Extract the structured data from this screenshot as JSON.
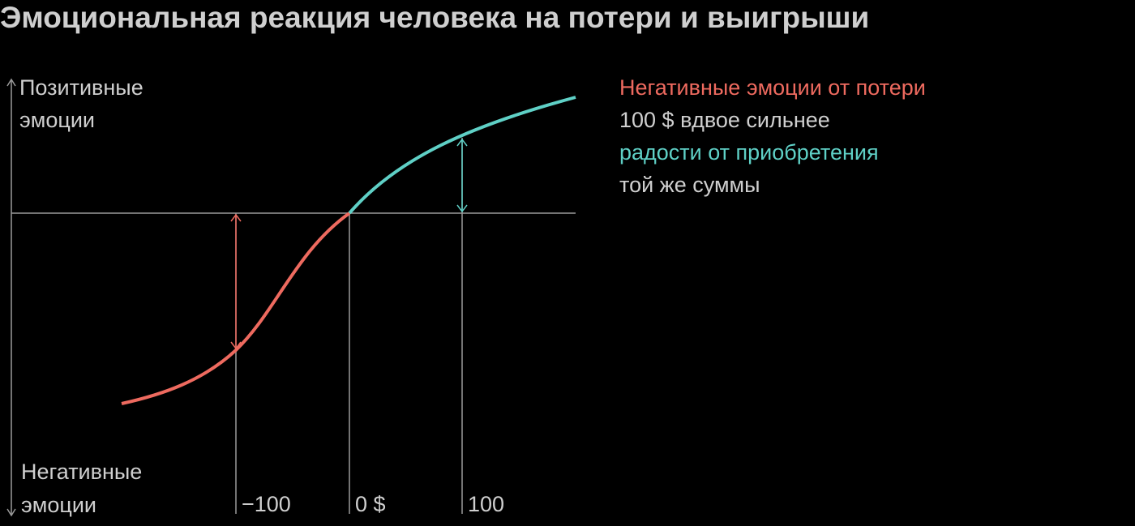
{
  "title": "Эмоциональная реакция человека на потери и выигрыши",
  "axis": {
    "positive": [
      "Позитивные",
      "эмоции"
    ],
    "negative": [
      "Негативные",
      "эмоции"
    ]
  },
  "x_labels": [
    "−100",
    "0 $",
    "100"
  ],
  "annotation": [
    "Негативные эмоции от потери",
    "100 $ вдвое сильнее",
    "радости от приобретения",
    "той же суммы"
  ]
}
